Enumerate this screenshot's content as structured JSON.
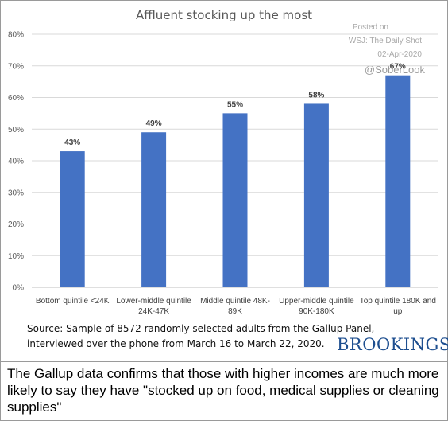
{
  "chart_data": {
    "type": "bar",
    "title": "Affluent stocking up the most",
    "categories": [
      [
        "Bottom quintile <24K"
      ],
      [
        "Lower-middle quintile",
        "24K-47K"
      ],
      [
        "Middle quintile 48K-",
        "89K"
      ],
      [
        "Upper-middle quintile",
        "90K-180K"
      ],
      [
        "Top quintile 180K and",
        "up"
      ]
    ],
    "values": [
      43,
      49,
      55,
      58,
      67
    ],
    "data_labels": [
      "43%",
      "49%",
      "55%",
      "58%",
      "67%"
    ],
    "ylim": [
      0,
      80
    ],
    "yticks": [
      "0%",
      "10%",
      "20%",
      "30%",
      "40%",
      "50%",
      "60%",
      "70%",
      "80%"
    ],
    "grid": true,
    "bar_color": "#4472c4"
  },
  "watermark": {
    "line1": "Posted on",
    "line2": "WSJ: The Daily Shot",
    "line3": "02-Apr-2020",
    "line4": "@SoberLook"
  },
  "source": {
    "line1": "Source: Sample of 8572 randomly selected adults from the Gallup Panel,",
    "line2": "interviewed over the phone from March 16 to March 22, 2020."
  },
  "brand": "BROOKINGS",
  "caption": "The Gallup data confirms that those with higher incomes are much more likely to say they have \"stocked up on food, medical supplies or cleaning supplies\""
}
